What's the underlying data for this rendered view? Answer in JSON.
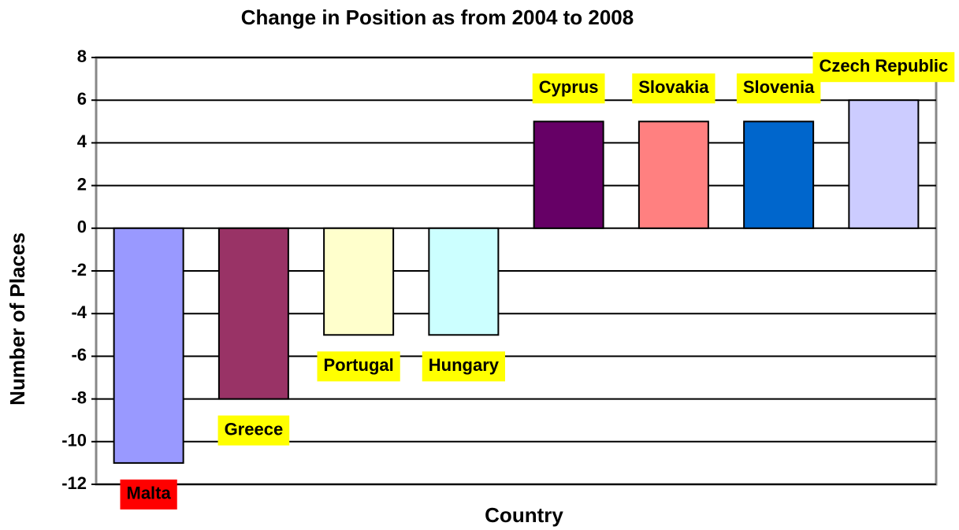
{
  "chart_data": {
    "type": "bar",
    "title": "Change in Position as from 2004 to 2008",
    "x_label": "Country",
    "y_label": "Number of Places",
    "categories": [
      "Malta",
      "Greece",
      "Portugal",
      "Hungary",
      "Cyprus",
      "Slovakia",
      "Slovenia",
      "Czech Republic"
    ],
    "values": [
      -11,
      -8,
      -5,
      -5,
      5,
      5,
      5,
      6
    ],
    "colors": [
      "#9999ff",
      "#993366",
      "#ffffcc",
      "#ccffff",
      "#660066",
      "#ff8080",
      "#0066cc",
      "#ccccff"
    ],
    "label_colors": [
      "#ff0000",
      "#ffff00",
      "#ffff00",
      "#ffff00",
      "#ffff00",
      "#ffff00",
      "#ffff00",
      "#ffff00"
    ],
    "ylim": [
      -12,
      8
    ],
    "yticks": [
      -12,
      -10,
      -8,
      -6,
      -4,
      -2,
      0,
      2,
      4,
      6,
      8
    ],
    "grid": true
  }
}
